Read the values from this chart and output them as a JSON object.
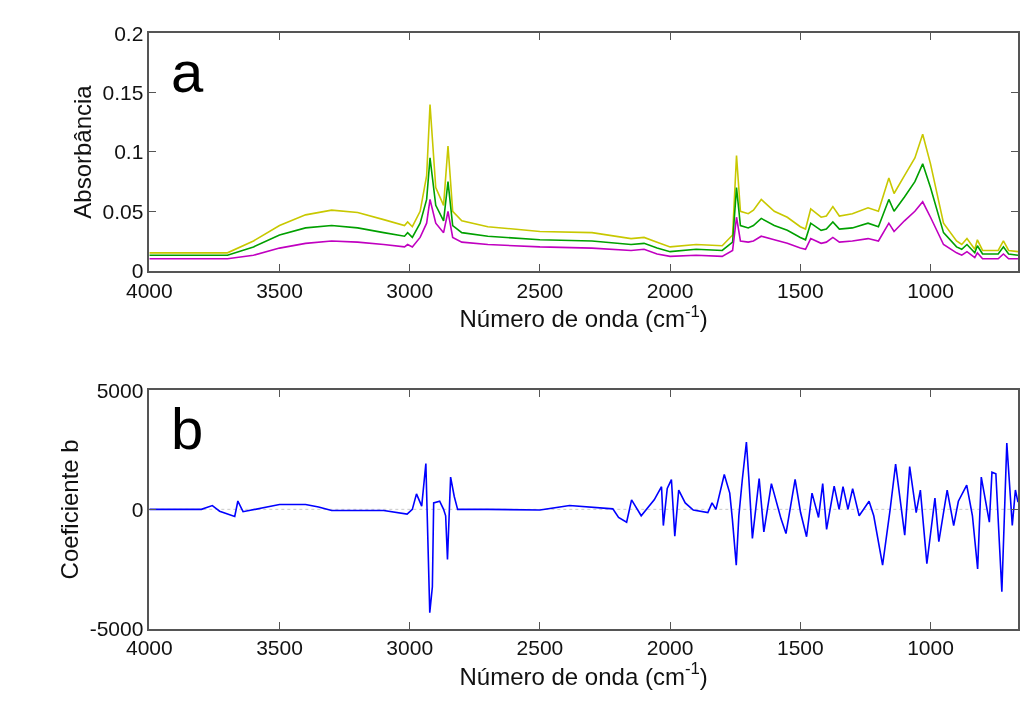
{
  "chart_data": [
    {
      "type": "line",
      "annotations": [
        "a"
      ],
      "xlabel": "Número de onda (cm$^{-1}$)",
      "ylabel": "Absorbância",
      "x": [
        4000,
        3700,
        3600,
        3500,
        3400,
        3300,
        3200,
        3100,
        3020,
        3008,
        2990,
        2960,
        2935,
        2922,
        2900,
        2870,
        2853,
        2835,
        2800,
        2700,
        2500,
        2300,
        2150,
        2100,
        2050,
        2000,
        1900,
        1800,
        1760,
        1745,
        1730,
        1700,
        1680,
        1650,
        1600,
        1550,
        1500,
        1480,
        1460,
        1420,
        1400,
        1375,
        1350,
        1300,
        1240,
        1200,
        1160,
        1140,
        1100,
        1060,
        1030,
        1000,
        950,
        900,
        880,
        860,
        830,
        820,
        800,
        740,
        720,
        700,
        664
      ],
      "series": [
        {
          "color": "#c8c800",
          "values": [
            0.015,
            0.015,
            0.025,
            0.038,
            0.047,
            0.051,
            0.049,
            0.043,
            0.038,
            0.041,
            0.037,
            0.05,
            0.08,
            0.14,
            0.07,
            0.055,
            0.105,
            0.05,
            0.042,
            0.037,
            0.033,
            0.032,
            0.027,
            0.028,
            0.024,
            0.02,
            0.022,
            0.021,
            0.03,
            0.097,
            0.05,
            0.048,
            0.051,
            0.06,
            0.05,
            0.045,
            0.037,
            0.035,
            0.052,
            0.045,
            0.046,
            0.054,
            0.046,
            0.048,
            0.053,
            0.05,
            0.078,
            0.065,
            0.08,
            0.095,
            0.115,
            0.09,
            0.04,
            0.025,
            0.022,
            0.027,
            0.018,
            0.026,
            0.017,
            0.017,
            0.025,
            0.017,
            0.016
          ]
        },
        {
          "color": "#00a000",
          "values": [
            0.013,
            0.013,
            0.02,
            0.03,
            0.036,
            0.038,
            0.036,
            0.032,
            0.029,
            0.032,
            0.028,
            0.04,
            0.06,
            0.095,
            0.055,
            0.042,
            0.075,
            0.038,
            0.032,
            0.029,
            0.026,
            0.025,
            0.022,
            0.023,
            0.019,
            0.016,
            0.018,
            0.017,
            0.024,
            0.07,
            0.038,
            0.036,
            0.038,
            0.044,
            0.038,
            0.034,
            0.028,
            0.026,
            0.04,
            0.034,
            0.035,
            0.041,
            0.035,
            0.036,
            0.04,
            0.037,
            0.06,
            0.05,
            0.062,
            0.075,
            0.09,
            0.07,
            0.032,
            0.02,
            0.018,
            0.022,
            0.015,
            0.021,
            0.014,
            0.014,
            0.02,
            0.014,
            0.013
          ]
        },
        {
          "color": "#c000c0",
          "values": [
            0.01,
            0.01,
            0.013,
            0.019,
            0.023,
            0.025,
            0.024,
            0.022,
            0.02,
            0.022,
            0.02,
            0.028,
            0.04,
            0.06,
            0.04,
            0.032,
            0.05,
            0.028,
            0.024,
            0.022,
            0.02,
            0.019,
            0.017,
            0.018,
            0.014,
            0.012,
            0.013,
            0.012,
            0.017,
            0.045,
            0.025,
            0.024,
            0.025,
            0.029,
            0.026,
            0.023,
            0.019,
            0.018,
            0.027,
            0.023,
            0.024,
            0.028,
            0.024,
            0.025,
            0.027,
            0.025,
            0.04,
            0.033,
            0.042,
            0.05,
            0.058,
            0.045,
            0.022,
            0.015,
            0.013,
            0.016,
            0.011,
            0.015,
            0.01,
            0.01,
            0.014,
            0.01,
            0.01
          ]
        }
      ],
      "xlim": [
        4000,
        664
      ],
      "xticks": [
        4000,
        3500,
        3000,
        2500,
        2000,
        1500,
        1000
      ],
      "ylim": [
        0,
        0.2
      ],
      "yticks": [
        0,
        0.05,
        0.1,
        0.15,
        0.2
      ],
      "grid": false,
      "marker": "none",
      "line_style": "solid"
    },
    {
      "type": "line",
      "annotations": [
        "b"
      ],
      "xlabel": "Número de onda (cm$^{-1}$)",
      "ylabel": "Coeficiente b",
      "x": [
        4000,
        3800,
        3758,
        3730,
        3672,
        3660,
        3640,
        3500,
        3400,
        3350,
        3300,
        3100,
        3010,
        2990,
        2974,
        2954,
        2938,
        2923,
        2913,
        2908,
        2885,
        2870,
        2862,
        2855,
        2843,
        2829,
        2816,
        2700,
        2500,
        2386,
        2220,
        2198,
        2167,
        2148,
        2111,
        2061,
        2033,
        2026,
        2011,
        1995,
        1982,
        1967,
        1942,
        1911,
        1855,
        1839,
        1824,
        1792,
        1771,
        1761,
        1746,
        1736,
        1723,
        1707,
        1698,
        1684,
        1658,
        1640,
        1611,
        1574,
        1555,
        1520,
        1499,
        1476,
        1455,
        1430,
        1414,
        1399,
        1370,
        1351,
        1336,
        1317,
        1299,
        1274,
        1236,
        1218,
        1184,
        1155,
        1134,
        1099,
        1080,
        1055,
        1039,
        1014,
        983,
        968,
        936,
        911,
        893,
        861,
        839,
        819,
        805,
        774,
        764,
        749,
        726,
        707,
        686,
        674,
        664
      ],
      "series": [
        {
          "color": "#0000ff",
          "values": [
            0,
            0,
            160,
            -80,
            -300,
            350,
            -100,
            200,
            200,
            100,
            -50,
            -50,
            -200,
            0,
            650,
            135,
            1924,
            -4336,
            -3250,
            270,
            340,
            0,
            -270,
            -2100,
            1355,
            540,
            0,
            0,
            -30,
            160,
            20,
            -340,
            -540,
            400,
            -270,
            400,
            950,
            -680,
            880,
            1250,
            -1125,
            810,
            270,
            -30,
            -135,
            270,
            0,
            1460,
            680,
            -400,
            -2340,
            -270,
            1220,
            2820,
            1355,
            -1220,
            1290,
            -950,
            1080,
            -400,
            -1015,
            1260,
            -135,
            -1150,
            680,
            -340,
            1080,
            -840,
            975,
            0,
            950,
            0,
            870,
            -270,
            340,
            -270,
            -2340,
            0,
            1900,
            -1085,
            1790,
            -135,
            810,
            -2280,
            470,
            -1355,
            810,
            -680,
            340,
            1015,
            -270,
            -2500,
            1355,
            -540,
            1560,
            1490,
            -3455,
            2780,
            -680,
            810,
            300
          ]
        }
      ],
      "ref_lines": [
        {
          "axis": "y",
          "value": 0,
          "color": "#c8c8c8",
          "line_style": "dotted"
        }
      ],
      "xlim": [
        4000,
        664
      ],
      "xticks": [
        4000,
        3500,
        3000,
        2500,
        2000,
        1500,
        1000
      ],
      "ylim": [
        -5000,
        5000
      ],
      "yticks": [
        -5000,
        0,
        5000
      ],
      "grid": false,
      "marker": "none",
      "line_style": "solid"
    }
  ]
}
